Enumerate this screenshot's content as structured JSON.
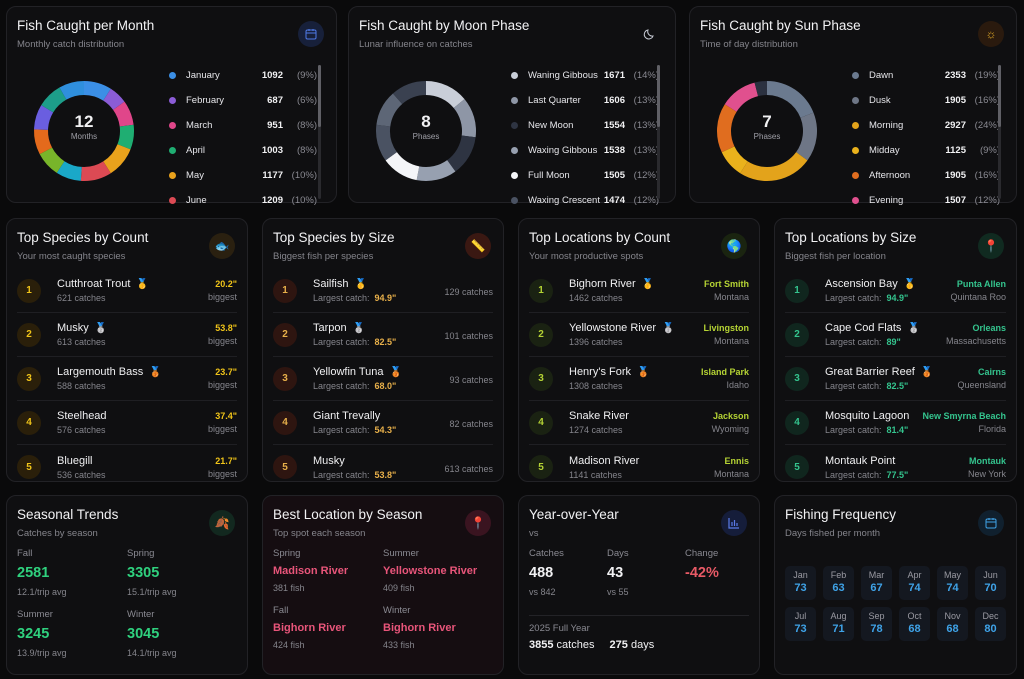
{
  "month": {
    "title": "Fish Caught per Month",
    "subtitle": "Monthly catch distribution",
    "icon": "calendar-icon",
    "center_value": "12",
    "center_label": "Months",
    "items": [
      {
        "name": "January",
        "value": "1092",
        "pct": "(9%)",
        "color": "#3b8fe6"
      },
      {
        "name": "February",
        "value": "687",
        "pct": "(6%)",
        "color": "#8b5cd6"
      },
      {
        "name": "March",
        "value": "951",
        "pct": "(8%)",
        "color": "#e0468a"
      },
      {
        "name": "April",
        "value": "1003",
        "pct": "(8%)",
        "color": "#1fae72"
      },
      {
        "name": "May",
        "value": "1177",
        "pct": "(10%)",
        "color": "#e9a21c"
      },
      {
        "name": "June",
        "value": "1209",
        "pct": "(10%)",
        "color": "#dc4a54"
      }
    ],
    "extra_colors": [
      "#1aa8c8",
      "#78b52a",
      "#e46a1c",
      "#6a5ee0",
      "#1d9e8a",
      "#2f8fdd"
    ]
  },
  "moon": {
    "title": "Fish Caught by Moon Phase",
    "subtitle": "Lunar influence on catches",
    "icon": "moon-icon",
    "center_value": "8",
    "center_label": "Phases",
    "items": [
      {
        "name": "Waning Gibbous",
        "value": "1671",
        "pct": "(14%)",
        "color": "#c9ced8"
      },
      {
        "name": "Last Quarter",
        "value": "1606",
        "pct": "(13%)",
        "color": "#8e96a6"
      },
      {
        "name": "New Moon",
        "value": "1554",
        "pct": "(13%)",
        "color": "#2e3442"
      },
      {
        "name": "Waxing Gibbous",
        "value": "1538",
        "pct": "(13%)",
        "color": "#97a0b0"
      },
      {
        "name": "Full Moon",
        "value": "1505",
        "pct": "(12%)",
        "color": "#f4f5f8"
      },
      {
        "name": "Waxing Crescent",
        "value": "1474",
        "pct": "(12%)",
        "color": "#4a5262"
      }
    ],
    "extra_colors": [
      "#5d6676",
      "#3a4150"
    ]
  },
  "sun": {
    "title": "Fish Caught by Sun Phase",
    "subtitle": "Time of day distribution",
    "icon": "sun-icon",
    "center_value": "7",
    "center_label": "Phases",
    "items": [
      {
        "name": "Dawn",
        "value": "2353",
        "pct": "(19%)",
        "color": "#6b7a8f"
      },
      {
        "name": "Dusk",
        "value": "1905",
        "pct": "(16%)",
        "color": "#6e7686"
      },
      {
        "name": "Morning",
        "value": "2927",
        "pct": "(24%)",
        "color": "#e3a31b"
      },
      {
        "name": "Midday",
        "value": "1125",
        "pct": "(9%)",
        "color": "#eab21c"
      },
      {
        "name": "Afternoon",
        "value": "1905",
        "pct": "(16%)",
        "color": "#e06d1f"
      },
      {
        "name": "Evening",
        "value": "1507",
        "pct": "(12%)",
        "color": "#e0508e"
      }
    ],
    "extra_colors": [
      "#2b3140"
    ]
  },
  "species_count": {
    "title": "Top Species by Count",
    "subtitle": "Your most caught species",
    "icon": "fish-icon",
    "accent": "#f0c419",
    "rows": [
      {
        "rank": "1",
        "name": "Cutthroat Trout",
        "medal": "🥇",
        "sub": "621 catches",
        "a": "20.2\"",
        "b": "biggest"
      },
      {
        "rank": "2",
        "name": "Musky",
        "medal": "🥈",
        "sub": "613 catches",
        "a": "53.8\"",
        "b": "biggest"
      },
      {
        "rank": "3",
        "name": "Largemouth Bass",
        "medal": "🥉",
        "sub": "588 catches",
        "a": "23.7\"",
        "b": "biggest"
      },
      {
        "rank": "4",
        "name": "Steelhead",
        "medal": "",
        "sub": "576 catches",
        "a": "37.4\"",
        "b": "biggest"
      },
      {
        "rank": "5",
        "name": "Bluegill",
        "medal": "",
        "sub": "536 catches",
        "a": "21.7\"",
        "b": "biggest"
      }
    ]
  },
  "species_size": {
    "title": "Top Species by Size",
    "subtitle": "Biggest fish per species",
    "icon": "ruler-icon",
    "accent": "#e8b04a",
    "label": "Largest catch:",
    "rows": [
      {
        "rank": "1",
        "name": "Sailfish",
        "medal": "🥇",
        "size": "94.9\"",
        "count": "129 catches"
      },
      {
        "rank": "2",
        "name": "Tarpon",
        "medal": "🥈",
        "size": "82.5\"",
        "count": "101 catches"
      },
      {
        "rank": "3",
        "name": "Yellowfin Tuna",
        "medal": "🥉",
        "size": "68.0\"",
        "count": "93 catches"
      },
      {
        "rank": "4",
        "name": "Giant Trevally",
        "medal": "",
        "size": "54.3\"",
        "count": "82 catches"
      },
      {
        "rank": "5",
        "name": "Musky",
        "medal": "",
        "size": "53.8\"",
        "count": "613 catches"
      }
    ]
  },
  "loc_count": {
    "title": "Top Locations by Count",
    "subtitle": "Your most productive spots",
    "icon": "globe-icon",
    "accent": "#b5d334",
    "rows": [
      {
        "rank": "1",
        "name": "Bighorn River",
        "medal": "🥇",
        "sub": "1462 catches",
        "a": "Fort Smith",
        "b": "Montana"
      },
      {
        "rank": "2",
        "name": "Yellowstone River",
        "medal": "🥈",
        "sub": "1396 catches",
        "a": "Livingston",
        "b": "Montana"
      },
      {
        "rank": "3",
        "name": "Henry's Fork",
        "medal": "🥉",
        "sub": "1308 catches",
        "a": "Island Park",
        "b": "Idaho"
      },
      {
        "rank": "4",
        "name": "Snake River",
        "medal": "",
        "sub": "1274 catches",
        "a": "Jackson",
        "b": "Wyoming"
      },
      {
        "rank": "5",
        "name": "Madison River",
        "medal": "",
        "sub": "1141 catches",
        "a": "Ennis",
        "b": "Montana"
      }
    ]
  },
  "loc_size": {
    "title": "Top Locations by Size",
    "subtitle": "Biggest fish per location",
    "icon": "pin-icon",
    "accent": "#34c48e",
    "label": "Largest catch:",
    "rows": [
      {
        "rank": "1",
        "name": "Ascension Bay",
        "medal": "🥇",
        "size": "94.9\"",
        "a": "Punta Allen",
        "b": "Quintana Roo"
      },
      {
        "rank": "2",
        "name": "Cape Cod Flats",
        "medal": "🥈",
        "size": "89\"",
        "a": "Orleans",
        "b": "Massachusetts"
      },
      {
        "rank": "3",
        "name": "Great Barrier Reef",
        "medal": "🥉",
        "size": "82.5\"",
        "a": "Cairns",
        "b": "Queensland"
      },
      {
        "rank": "4",
        "name": "Mosquito Lagoon",
        "medal": "",
        "size": "81.4\"",
        "a": "New Smyrna Beach",
        "b": "Florida"
      },
      {
        "rank": "5",
        "name": "Montauk Point",
        "medal": "",
        "size": "77.5\"",
        "a": "Montauk",
        "b": "New York"
      }
    ]
  },
  "seasonal": {
    "title": "Seasonal Trends",
    "subtitle": "Catches by season",
    "icon": "leaf-icon",
    "items": [
      {
        "season": "Fall",
        "value": "2581",
        "avg": "12.1/trip avg"
      },
      {
        "season": "Spring",
        "value": "3305",
        "avg": "15.1/trip avg"
      },
      {
        "season": "Summer",
        "value": "3245",
        "avg": "13.9/trip avg"
      },
      {
        "season": "Winter",
        "value": "3045",
        "avg": "14.1/trip avg"
      }
    ]
  },
  "best_loc": {
    "title": "Best Location by Season",
    "subtitle": "Top spot each season",
    "icon": "pin-icon",
    "items": [
      {
        "season": "Spring",
        "location": "Madison River",
        "fish": "381 fish"
      },
      {
        "season": "Summer",
        "location": "Yellowstone River",
        "fish": "409 fish"
      },
      {
        "season": "Fall",
        "location": "Bighorn River",
        "fish": "424 fish"
      },
      {
        "season": "Winter",
        "location": "Bighorn River",
        "fish": "433 fish"
      }
    ]
  },
  "yoy": {
    "title": "Year-over-Year",
    "subtitle": "vs",
    "icon": "bar-chart-icon",
    "catches_label": "Catches",
    "catches": "488",
    "catches_vs": "vs 842",
    "days_label": "Days",
    "days": "43",
    "days_vs": "vs 55",
    "change_label": "Change",
    "change": "-42%",
    "full_year_label": "2025 Full Year",
    "full_catches": "3855",
    "full_catches_unit": "catches",
    "full_days": "275",
    "full_days_unit": "days"
  },
  "frequency": {
    "title": "Fishing Frequency",
    "subtitle": "Days fished per month",
    "icon": "calendar-icon",
    "months": [
      {
        "m": "Jan",
        "d": "73"
      },
      {
        "m": "Feb",
        "d": "63"
      },
      {
        "m": "Mar",
        "d": "67"
      },
      {
        "m": "Apr",
        "d": "74"
      },
      {
        "m": "May",
        "d": "74"
      },
      {
        "m": "Jun",
        "d": "70"
      },
      {
        "m": "Jul",
        "d": "73"
      },
      {
        "m": "Aug",
        "d": "71"
      },
      {
        "m": "Sep",
        "d": "78"
      },
      {
        "m": "Oct",
        "d": "68"
      },
      {
        "m": "Nov",
        "d": "68"
      },
      {
        "m": "Dec",
        "d": "80"
      }
    ]
  }
}
